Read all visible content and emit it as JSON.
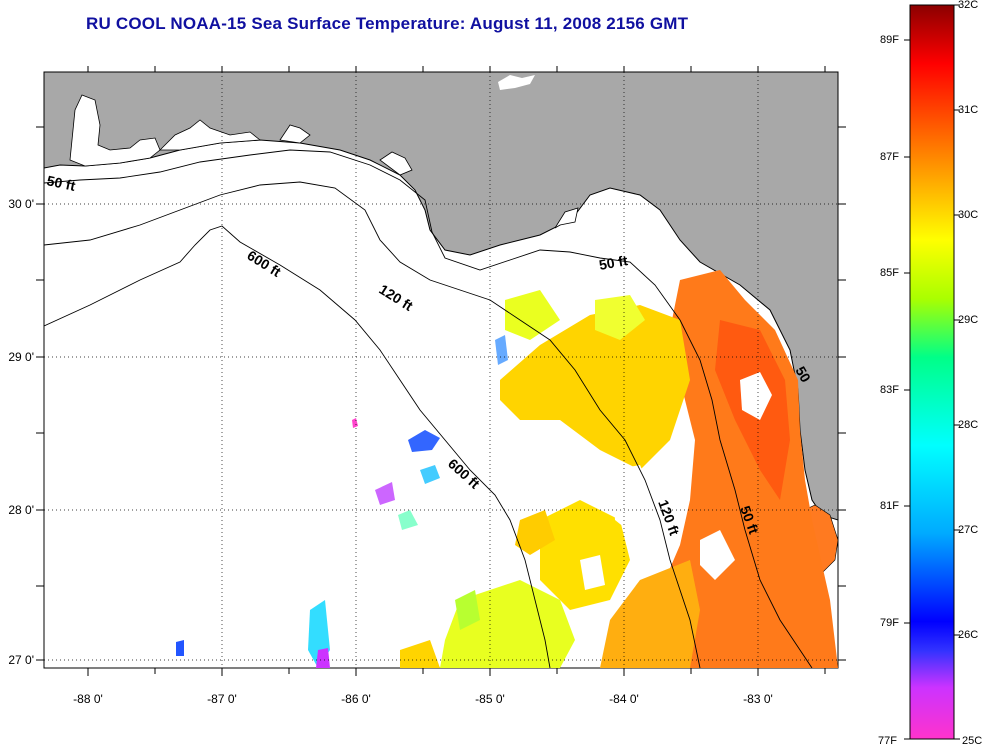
{
  "title": "RU COOL  NOAA-15  Sea Surface Temperature:  August 11, 2008 2156 GMT",
  "axes": {
    "x_ticks": [
      "-88 0'",
      "-87 0'",
      "-86 0'",
      "-85 0'",
      "-84 0'",
      "-83 0'"
    ],
    "y_ticks": [
      "30 0'",
      "29 0'",
      "28 0'",
      "27 0'"
    ]
  },
  "isobaths": [
    {
      "label": "50 ft"
    },
    {
      "label": "600 ft"
    },
    {
      "label": "120 ft"
    },
    {
      "label": "50 ft"
    },
    {
      "label": "600 ft"
    },
    {
      "label": "120 ft"
    },
    {
      "label": "50 ft"
    },
    {
      "label": "50"
    }
  ],
  "colorbar": {
    "celsius": [
      "32C",
      "31C",
      "30C",
      "29C",
      "28C",
      "27C",
      "26C",
      "25C"
    ],
    "fahrenheit": [
      "89F",
      "87F",
      "85F",
      "83F",
      "81F",
      "79F",
      "77F"
    ],
    "colors": [
      "#8b0000",
      "#ff0000",
      "#ff7f00",
      "#ffff00",
      "#00ff66",
      "#00ffff",
      "#0000ff",
      "#ff00cc"
    ]
  }
}
